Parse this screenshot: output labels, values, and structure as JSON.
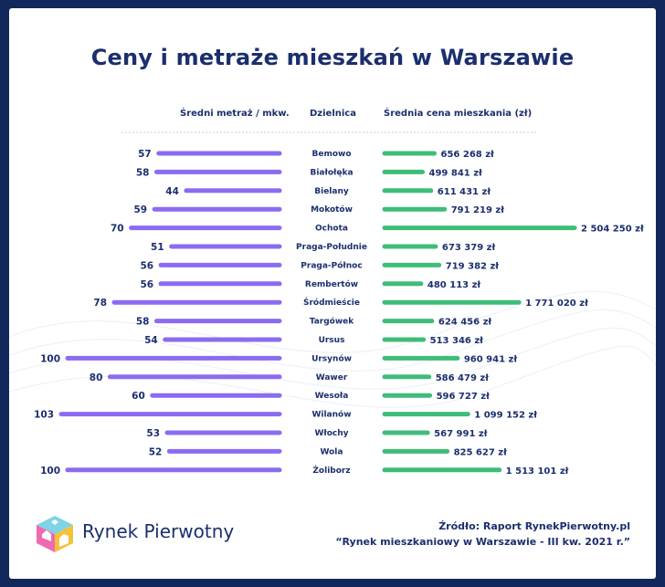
{
  "title": "Ceny i metraże mieszkań w Warszawie",
  "headers": {
    "left": "Średni metraż / mkw.",
    "middle": "Dzielnica",
    "right": "Średnia cena mieszkania (zł)"
  },
  "brand": "Rynek Pierwotny",
  "source": {
    "line1": "Źródło: Raport RynekPierwotny.pl",
    "line2": "“Rynek mieszkaniowy w Warszawie - III kw. 2021 r.”"
  },
  "colors": {
    "title": "#1b2f6e",
    "area_bar": "#8b6cf0",
    "price_bar": "#3ebd79",
    "frame": "#12275c"
  },
  "chart_data": [
    {
      "type": "bar",
      "orientation": "horizontal",
      "direction": "left",
      "series": [
        {
          "name": "Średni metraż / mkw.",
          "values": [
            57,
            58,
            44,
            59,
            70,
            51,
            56,
            56,
            78,
            58,
            54,
            100,
            80,
            60,
            103,
            53,
            52,
            100
          ]
        }
      ],
      "categories": [
        "Bemowo",
        "Białołęka",
        "Bielany",
        "Mokotów",
        "Ochota",
        "Praga-Południe",
        "Praga-Północ",
        "Rembertów",
        "Śródmieście",
        "Targówek",
        "Ursus",
        "Ursynów",
        "Wawer",
        "Wesoła",
        "Wilanów",
        "Włochy",
        "Wola",
        "Żoliborz"
      ],
      "labels": [
        "57",
        "58",
        "44",
        "59",
        "70",
        "51",
        "56",
        "56",
        "78",
        "58",
        "54",
        "100",
        "80",
        "60",
        "103",
        "53",
        "52",
        "100"
      ]
    },
    {
      "type": "bar",
      "orientation": "horizontal",
      "direction": "right",
      "series": [
        {
          "name": "Średnia cena mieszkania (zł)",
          "values": [
            656268,
            499841,
            611431,
            791219,
            2504250,
            673379,
            719382,
            480113,
            1771020,
            624456,
            513346,
            960941,
            586479,
            596727,
            1099152,
            567991,
            825627,
            1513101
          ]
        }
      ],
      "categories": [
        "Bemowo",
        "Białołęka",
        "Bielany",
        "Mokotów",
        "Ochota",
        "Praga-Południe",
        "Praga-Północ",
        "Rembertów",
        "Śródmieście",
        "Targówek",
        "Ursus",
        "Ursynów",
        "Wawer",
        "Wesoła",
        "Wilanów",
        "Włochy",
        "Wola",
        "Żoliborz"
      ],
      "labels": [
        "656 268 zł",
        "499 841 zł",
        "611 431 zł",
        "791 219 zł",
        "2 504 250 zł",
        "673 379 zł",
        "719 382 zł",
        "480 113 zł",
        "1 771 020 zł",
        "624 456 zł",
        "513 346 zł",
        "960 941 zł",
        "586 479 zł",
        "596 727 zł",
        "1 099 152 zł",
        "567 991 zł",
        "825 627 zł",
        "1 513 101 zł"
      ]
    }
  ]
}
